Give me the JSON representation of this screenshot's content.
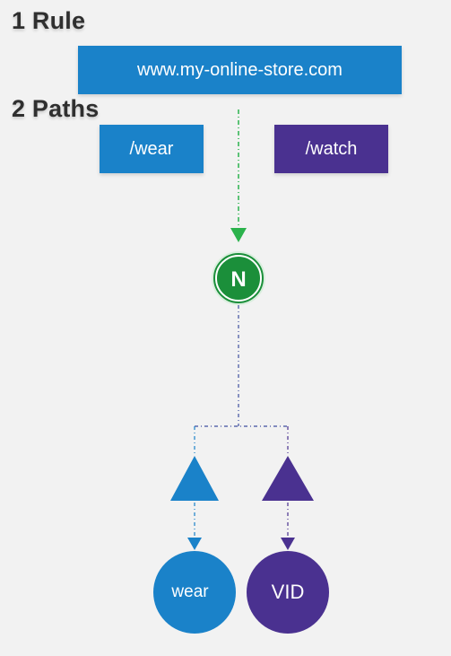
{
  "headings": {
    "rule": "1 Rule",
    "paths": "2 Paths"
  },
  "host_box": {
    "label": "www.my-online-store.com"
  },
  "paths": [
    {
      "label": "/wear"
    },
    {
      "label": "/watch"
    }
  ],
  "ingress_node": {
    "label": "N"
  },
  "service_nodes": [
    {
      "label": "wear"
    },
    {
      "label": "VID"
    }
  ],
  "colors": {
    "background": "#f2f2f2",
    "blue": "#1a82c9",
    "purple": "#4a3190",
    "green": "#1b8f3a",
    "green_arrow": "#2bb24c",
    "heading": "#2f2f2f"
  }
}
